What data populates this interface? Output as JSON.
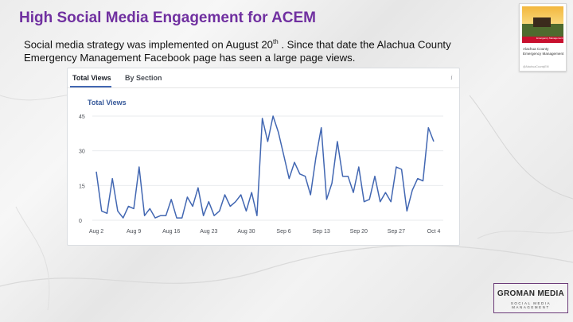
{
  "slide": {
    "title": "High Social Media Engagement for ACEM",
    "body_part1": "Social media strategy was implemented on August 20",
    "body_sup": "th",
    "body_part2": " . Since that date the Alachua County Emergency Management Facebook page has seen a large page views."
  },
  "thumbnail": {
    "badge": "Emergency Management",
    "name": "Alachua County Emergency Management",
    "handle": "@AlachuaCountyEM"
  },
  "insights": {
    "tabs": [
      {
        "label": "Total Views",
        "active": true
      },
      {
        "label": "By Section",
        "active": false
      }
    ],
    "info_icon": "i",
    "accent": "#4267b2"
  },
  "chart_data": {
    "type": "line",
    "title": "Total Views",
    "ylim": [
      0,
      45
    ],
    "yticks": [
      0,
      15,
      30,
      45
    ],
    "grid": true,
    "color": "#4267b2",
    "xticks": [
      "Aug 2",
      "Aug 9",
      "Aug 16",
      "Aug 23",
      "Aug 30",
      "Sep 6",
      "Sep 13",
      "Sep 20",
      "Sep 27",
      "Oct 4"
    ],
    "x": [
      "Aug 2",
      "Aug 3",
      "Aug 4",
      "Aug 5",
      "Aug 6",
      "Aug 7",
      "Aug 8",
      "Aug 9",
      "Aug 10",
      "Aug 11",
      "Aug 12",
      "Aug 13",
      "Aug 14",
      "Aug 15",
      "Aug 16",
      "Aug 17",
      "Aug 18",
      "Aug 19",
      "Aug 20",
      "Aug 21",
      "Aug 22",
      "Aug 23",
      "Aug 24",
      "Aug 25",
      "Aug 26",
      "Aug 27",
      "Aug 28",
      "Aug 29",
      "Aug 30",
      "Aug 31",
      "Sep 1",
      "Sep 2",
      "Sep 3",
      "Sep 4",
      "Sep 5",
      "Sep 6",
      "Sep 7",
      "Sep 8",
      "Sep 9",
      "Sep 10",
      "Sep 11",
      "Sep 12",
      "Sep 13",
      "Sep 14",
      "Sep 15",
      "Sep 16",
      "Sep 17",
      "Sep 18",
      "Sep 19",
      "Sep 20",
      "Sep 21",
      "Sep 22",
      "Sep 23",
      "Sep 24",
      "Sep 25",
      "Sep 26",
      "Sep 27",
      "Sep 28",
      "Sep 29",
      "Sep 30",
      "Oct 1",
      "Oct 2",
      "Oct 3",
      "Oct 4"
    ],
    "values": [
      21,
      4,
      3,
      18,
      4,
      1,
      6,
      5,
      23,
      2,
      5,
      1,
      2,
      2,
      9,
      1,
      1,
      10,
      6,
      14,
      2,
      8,
      2,
      4,
      11,
      6,
      8,
      11,
      4,
      12,
      2,
      44,
      34,
      45,
      38,
      28,
      18,
      25,
      20,
      19,
      11,
      27,
      40,
      9,
      16,
      34,
      19,
      19,
      12,
      23,
      8,
      9,
      19,
      8,
      12,
      8,
      23,
      22,
      4,
      13,
      18,
      17,
      40,
      34
    ]
  },
  "logo": {
    "main": "GROMAN MEDIA",
    "sub": "SOCIAL    MEDIA    MANAGEMENT"
  }
}
